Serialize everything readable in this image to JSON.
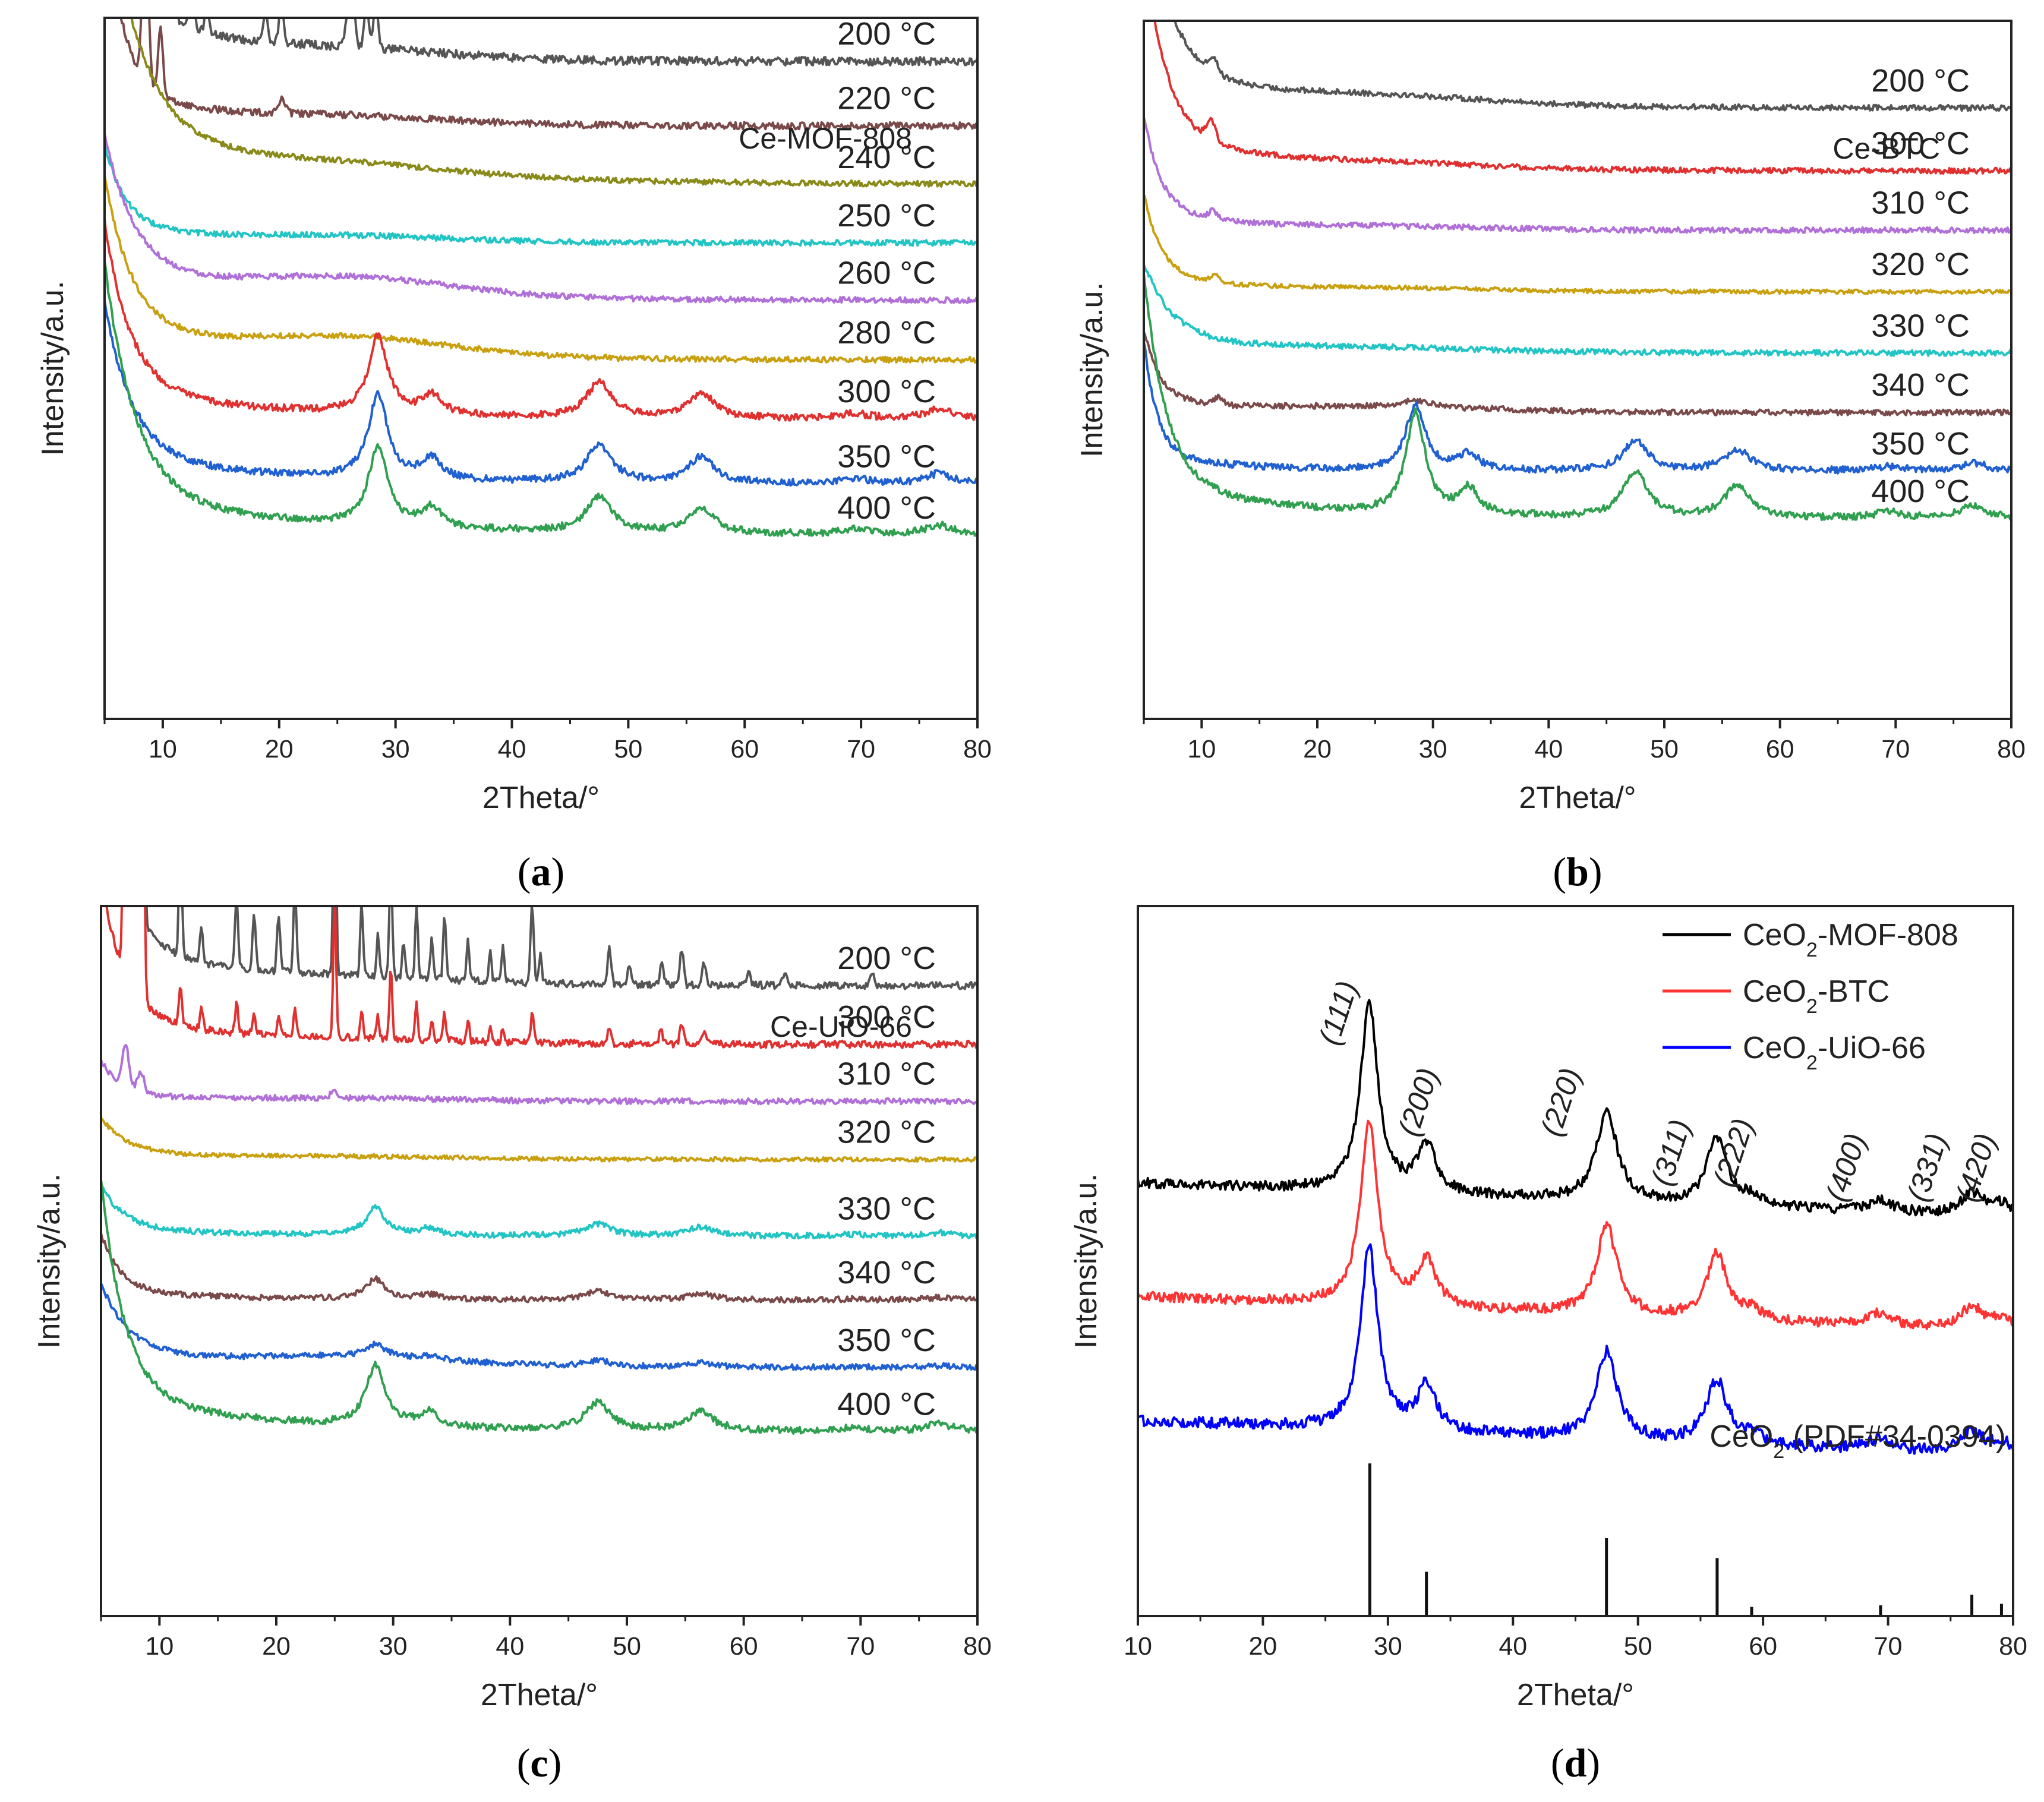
{
  "chart_data": [
    {
      "type": "line",
      "id": "a",
      "caption": "(a)",
      "caption_letter": "a",
      "title": "Ce-MOF-808",
      "xlabel": "2Theta/°",
      "ylabel": "Intensity/a.u.",
      "xlim": [
        5,
        80
      ],
      "xticks": [
        10,
        20,
        30,
        40,
        50,
        60,
        70,
        80
      ],
      "stacked": true,
      "ceria_peaks": [
        [
          28.5,
          1.0,
          1.0
        ],
        [
          33.1,
          0.25,
          1.0
        ],
        [
          47.5,
          0.45,
          1.3
        ],
        [
          56.3,
          0.32,
          1.3
        ],
        [
          69.4,
          0.06,
          1.4
        ],
        [
          76.7,
          0.12,
          1.4
        ]
      ],
      "series": [
        {
          "name": "200 °C",
          "color": "#555555",
          "baseline": 0.938,
          "wall": 0.5,
          "decay": 1.5,
          "noise": 0.006,
          "crystal": 0,
          "hump": 0.012,
          "extra_peaks": [
            [
              8.5,
              1.8,
              0.25
            ],
            [
              9.8,
              0.6,
              0.2
            ],
            [
              10.8,
              0.25,
              0.2
            ],
            [
              12.5,
              0.05,
              0.2
            ],
            [
              13.8,
              0.04,
              0.2
            ],
            [
              18.8,
              0.04,
              0.2
            ],
            [
              20.2,
              0.05,
              0.2
            ],
            [
              25.9,
              0.05,
              0.2
            ],
            [
              26.3,
              0.08,
              0.2
            ],
            [
              27.5,
              0.06,
              0.2
            ],
            [
              28.3,
              0.07,
              0.2
            ]
          ]
        },
        {
          "name": "220 °C",
          "color": "#7a4a4a",
          "baseline": 0.846,
          "wall": 0.27,
          "decay": 1.6,
          "noise": 0.005,
          "crystal": 0,
          "hump": 0.01,
          "extra_peaks": [
            [
              8.5,
              0.25,
              0.25
            ],
            [
              9.8,
              0.1,
              0.2
            ],
            [
              20.2,
              0.02,
              0.3
            ]
          ]
        },
        {
          "name": "240 °C",
          "color": "#8a8a1a",
          "baseline": 0.762,
          "wall": 0.38,
          "decay": 3.0,
          "noise": 0.004,
          "crystal": 0,
          "hump": 0.012,
          "extra_peaks": []
        },
        {
          "name": "250 °C",
          "color": "#22c4c4",
          "baseline": 0.679,
          "wall": 0.12,
          "decay": 1.8,
          "noise": 0.004,
          "crystal": 0,
          "hump": 0.008,
          "extra_peaks": []
        },
        {
          "name": "260 °C",
          "color": "#b070d8",
          "baseline": 0.597,
          "wall": 0.2,
          "decay": 2.6,
          "noise": 0.004,
          "crystal": 0,
          "hump": 0.025,
          "extra_peaks": []
        },
        {
          "name": "280 °C",
          "color": "#c8a010",
          "baseline": 0.512,
          "wall": 0.22,
          "decay": 2.4,
          "noise": 0.004,
          "crystal": 0,
          "hump": 0.025,
          "extra_peaks": []
        },
        {
          "name": "300 °C",
          "color": "#e03030",
          "baseline": 0.428,
          "wall": 0.24,
          "decay": 2.2,
          "noise": 0.005,
          "crystal": 0.11,
          "hump": 0.0,
          "extra_peaks": []
        },
        {
          "name": "350 °C",
          "color": "#2060d0",
          "baseline": 0.335,
          "wall": 0.22,
          "decay": 2.4,
          "noise": 0.005,
          "crystal": 0.12,
          "hump": 0.0,
          "extra_peaks": []
        },
        {
          "name": "400 °C",
          "color": "#30a050",
          "baseline": 0.262,
          "wall": 0.33,
          "decay": 2.6,
          "noise": 0.005,
          "crystal": 0.115,
          "hump": 0.0,
          "extra_peaks": []
        }
      ]
    },
    {
      "type": "line",
      "id": "b",
      "caption": "(b)",
      "caption_letter": "b",
      "title": "Ce-BTC",
      "xlabel": "2Theta/°",
      "ylabel": "Intensity/a.u.",
      "xlim": [
        5,
        80
      ],
      "xticks": [
        10,
        20,
        30,
        40,
        50,
        60,
        70,
        80
      ],
      "stacked": true,
      "ceria_peaks": [
        [
          28.5,
          1.0,
          1.0
        ],
        [
          33.1,
          0.25,
          1.0
        ],
        [
          47.5,
          0.45,
          1.3
        ],
        [
          56.3,
          0.32,
          1.3
        ],
        [
          69.4,
          0.06,
          1.4
        ],
        [
          76.7,
          0.12,
          1.4
        ]
      ],
      "series": [
        {
          "name": "200 °C",
          "color": "#555555",
          "baseline": 0.875,
          "wall": 0.28,
          "decay": 2.2,
          "noise": 0.004,
          "crystal": 0,
          "hump": 0.01,
          "extra_peaks": [
            [
              11.0,
              0.02,
              0.4
            ]
          ]
        },
        {
          "name": "300 °C",
          "color": "#e03030",
          "baseline": 0.785,
          "wall": 0.28,
          "decay": 1.9,
          "noise": 0.004,
          "crystal": 0,
          "hump": 0.006,
          "extra_peaks": [
            [
              10.8,
              0.03,
              0.4
            ]
          ]
        },
        {
          "name": "310 °C",
          "color": "#b070d8",
          "baseline": 0.7,
          "wall": 0.14,
          "decay": 1.5,
          "noise": 0.004,
          "crystal": 0,
          "hump": 0.004,
          "extra_peaks": [
            [
              11.0,
              0.012,
              0.4
            ]
          ]
        },
        {
          "name": "320 °C",
          "color": "#c8a010",
          "baseline": 0.612,
          "wall": 0.12,
          "decay": 1.5,
          "noise": 0.003,
          "crystal": 0,
          "hump": 0.004,
          "extra_peaks": [
            [
              11.2,
              0.012,
              0.4
            ]
          ]
        },
        {
          "name": "330 °C",
          "color": "#22c4c4",
          "baseline": 0.524,
          "wall": 0.11,
          "decay": 2.4,
          "noise": 0.004,
          "crystal": 0,
          "hump": 0.004,
          "extra_peaks": []
        },
        {
          "name": "340 °C",
          "color": "#7a4a4a",
          "baseline": 0.439,
          "wall": 0.1,
          "decay": 1.4,
          "noise": 0.004,
          "crystal": 0,
          "hump": 0.008,
          "extra_peaks": [
            [
              11.5,
              0.01,
              0.4
            ],
            [
              28.5,
              0.008,
              1.2
            ]
          ]
        },
        {
          "name": "350 °C",
          "color": "#2060d0",
          "baseline": 0.355,
          "wall": 0.16,
          "decay": 1.1,
          "noise": 0.005,
          "crystal": 0.095,
          "hump": 0.0,
          "extra_peaks": []
        },
        {
          "name": "400 °C",
          "color": "#30a050",
          "baseline": 0.287,
          "wall": 0.3,
          "decay": 1.9,
          "noise": 0.005,
          "crystal": 0.145,
          "hump": 0.0,
          "extra_peaks": []
        }
      ]
    },
    {
      "type": "line",
      "id": "c",
      "caption": "(c)",
      "caption_letter": "c",
      "title": "Ce-UiO-66",
      "xlabel": "2Theta/°",
      "ylabel": "Intensity/a.u.",
      "xlim": [
        5,
        80
      ],
      "xticks": [
        10,
        20,
        30,
        40,
        50,
        60,
        70,
        80
      ],
      "stacked": true,
      "ceria_peaks": [
        [
          28.5,
          1.0,
          1.0
        ],
        [
          33.1,
          0.25,
          1.0
        ],
        [
          47.5,
          0.45,
          1.3
        ],
        [
          56.3,
          0.32,
          1.3
        ],
        [
          69.4,
          0.06,
          1.4
        ],
        [
          76.7,
          0.12,
          1.4
        ]
      ],
      "series": [
        {
          "name": "200 °C",
          "color": "#555555",
          "baseline": 0.888,
          "wall": 0.3,
          "decay": 2.0,
          "noise": 0.005,
          "crystal": 0,
          "hump": 0.006,
          "extra_peaks": [
            [
              7.3,
              2.0,
              0.2
            ],
            [
              8.3,
              2.0,
              0.2
            ],
            [
              11.8,
              0.16,
              0.13
            ],
            [
              13.6,
              0.05,
              0.13
            ],
            [
              16.6,
              0.1,
              0.13
            ],
            [
              18.1,
              0.08,
              0.13
            ],
            [
              20.2,
              0.08,
              0.13
            ],
            [
              21.6,
              0.12,
              0.13
            ],
            [
              25.0,
              0.29,
              0.12
            ],
            [
              27.3,
              0.1,
              0.12
            ],
            [
              28.7,
              0.06,
              0.12
            ],
            [
              29.8,
              0.17,
              0.12
            ],
            [
              30.9,
              0.05,
              0.12
            ],
            [
              32.0,
              0.1,
              0.12
            ],
            [
              33.3,
              0.06,
              0.12
            ],
            [
              34.4,
              0.09,
              0.12
            ],
            [
              36.4,
              0.06,
              0.12
            ],
            [
              38.3,
              0.04,
              0.12
            ],
            [
              39.4,
              0.05,
              0.12
            ],
            [
              41.9,
              0.11,
              0.14
            ],
            [
              42.6,
              0.04,
              0.12
            ],
            [
              48.5,
              0.05,
              0.15
            ],
            [
              50.2,
              0.03,
              0.15
            ],
            [
              53.0,
              0.03,
              0.15
            ],
            [
              54.7,
              0.05,
              0.15
            ],
            [
              56.6,
              0.03,
              0.15
            ],
            [
              60.4,
              0.02,
              0.15
            ],
            [
              63.5,
              0.02,
              0.15
            ],
            [
              71.0,
              0.02,
              0.15
            ]
          ]
        },
        {
          "name": "300 °C",
          "color": "#e03030",
          "baseline": 0.805,
          "wall": 0.2,
          "decay": 2.0,
          "noise": 0.005,
          "crystal": 0,
          "hump": 0.004,
          "extra_peaks": [
            [
              7.3,
              2.0,
              0.2
            ],
            [
              8.3,
              2.0,
              0.2
            ],
            [
              11.8,
              0.05,
              0.13
            ],
            [
              13.6,
              0.03,
              0.13
            ],
            [
              16.6,
              0.04,
              0.13
            ],
            [
              18.1,
              0.03,
              0.13
            ],
            [
              20.2,
              0.03,
              0.13
            ],
            [
              21.6,
              0.04,
              0.13
            ],
            [
              25.0,
              0.2,
              0.12
            ],
            [
              27.3,
              0.04,
              0.12
            ],
            [
              28.7,
              0.03,
              0.12
            ],
            [
              29.8,
              0.1,
              0.12
            ],
            [
              32.0,
              0.05,
              0.12
            ],
            [
              33.3,
              0.03,
              0.12
            ],
            [
              34.4,
              0.04,
              0.12
            ],
            [
              36.4,
              0.03,
              0.12
            ],
            [
              38.3,
              0.02,
              0.12
            ],
            [
              39.4,
              0.02,
              0.12
            ],
            [
              41.9,
              0.04,
              0.14
            ],
            [
              48.5,
              0.02,
              0.15
            ],
            [
              52.9,
              0.02,
              0.15
            ],
            [
              54.7,
              0.03,
              0.15
            ],
            [
              56.6,
              0.02,
              0.15
            ]
          ]
        },
        {
          "name": "310 °C",
          "color": "#b070d8",
          "baseline": 0.725,
          "wall": 0.05,
          "decay": 1.5,
          "noise": 0.004,
          "crystal": 0,
          "hump": 0.004,
          "extra_peaks": [
            [
              7.1,
              0.06,
              0.3
            ],
            [
              8.4,
              0.03,
              0.3
            ],
            [
              24.9,
              0.008,
              0.3
            ]
          ]
        },
        {
          "name": "320 °C",
          "color": "#c8a010",
          "baseline": 0.643,
          "wall": 0.05,
          "decay": 2.2,
          "noise": 0.003,
          "crystal": 0,
          "hump": 0.003,
          "extra_peaks": []
        },
        {
          "name": "330 °C",
          "color": "#22c4c4",
          "baseline": 0.535,
          "wall": 0.06,
          "decay": 2.0,
          "noise": 0.004,
          "crystal": 0.038,
          "hump": 0.0,
          "extra_peaks": []
        },
        {
          "name": "340 °C",
          "color": "#7a4a4a",
          "baseline": 0.445,
          "wall": 0.08,
          "decay": 1.6,
          "noise": 0.004,
          "crystal": 0.028,
          "hump": 0.0,
          "extra_peaks": []
        },
        {
          "name": "350 °C",
          "color": "#2060d0",
          "baseline": 0.35,
          "wall": 0.1,
          "decay": 2.4,
          "noise": 0.004,
          "crystal": 0.018,
          "hump": 0.012,
          "extra_peaks": []
        },
        {
          "name": "400 °C",
          "color": "#30a050",
          "baseline": 0.26,
          "wall": 0.3,
          "decay": 2.0,
          "noise": 0.005,
          "crystal": 0.085,
          "hump": 0.0,
          "extra_peaks": []
        }
      ]
    },
    {
      "type": "line",
      "id": "d",
      "caption": "(d)",
      "caption_letter": "d",
      "xlabel": "2Theta/°",
      "ylabel": "Intensity/a.u.",
      "xlim": [
        10,
        80
      ],
      "xticks": [
        10,
        20,
        30,
        40,
        50,
        60,
        70,
        80
      ],
      "stacked": true,
      "legend_position": "top-right",
      "legend": [
        {
          "main": "CeO",
          "sub": "2",
          "rest": "-MOF-808",
          "color": "#000000"
        },
        {
          "main": "CeO",
          "sub": "2",
          "rest": "-BTC",
          "color": "#ff3333"
        },
        {
          "main": "CeO",
          "sub": "2",
          "rest": "-UiO-66",
          "color": "#0000ff"
        }
      ],
      "ceria_peaks": [
        [
          28.5,
          1.0,
          0.85
        ],
        [
          33.1,
          0.25,
          0.9
        ],
        [
          47.5,
          0.48,
          1.0
        ],
        [
          56.3,
          0.35,
          1.0
        ],
        [
          59.1,
          0.05,
          0.9
        ],
        [
          69.4,
          0.07,
          1.1
        ],
        [
          76.7,
          0.12,
          1.1
        ],
        [
          79.1,
          0.07,
          1.0
        ]
      ],
      "series": [
        {
          "name": "CeO2-MOF-808",
          "color": "#000000",
          "baseline": 0.56,
          "wall": 0.07,
          "decay": 0,
          "slope": 0.05,
          "noise": 0.007,
          "crystal": 0.265,
          "hump": 0.0,
          "extra_peaks": []
        },
        {
          "name": "CeO2-BTC",
          "color": "#ff3333",
          "baseline": 0.4,
          "wall": 0.07,
          "decay": 0,
          "slope": 0.05,
          "noise": 0.007,
          "crystal": 0.26,
          "hump": 0.0,
          "extra_peaks": []
        },
        {
          "name": "CeO2-UiO-66",
          "color": "#0000ff",
          "baseline": 0.225,
          "wall": 0.07,
          "decay": 0,
          "slope": 0.05,
          "noise": 0.008,
          "crystal": 0.255,
          "hump": 0.0,
          "extra_peaks": []
        }
      ],
      "peak_labels": [
        {
          "hkl": "(111)",
          "x": 26.8
        },
        {
          "hkl": "(200)",
          "x": 33.2
        },
        {
          "hkl": "(220)",
          "x": 44.6
        },
        {
          "hkl": "(311)",
          "x": 53.4
        },
        {
          "hkl": "(222)",
          "x": 58.4
        },
        {
          "hkl": "(400)",
          "x": 67.4
        },
        {
          "hkl": "(331)",
          "x": 73.9
        },
        {
          "hkl": "(420)",
          "x": 77.8
        }
      ],
      "reference": {
        "label_main": "CeO",
        "label_sub": "2",
        "label_rest": " (PDF#34-0394)",
        "sticks": [
          {
            "x": 28.55,
            "h": 100
          },
          {
            "x": 33.08,
            "h": 29
          },
          {
            "x": 47.48,
            "h": 51
          },
          {
            "x": 56.33,
            "h": 38
          },
          {
            "x": 59.09,
            "h": 6
          },
          {
            "x": 69.4,
            "h": 7
          },
          {
            "x": 76.7,
            "h": 14
          },
          {
            "x": 79.07,
            "h": 8
          }
        ]
      }
    }
  ]
}
